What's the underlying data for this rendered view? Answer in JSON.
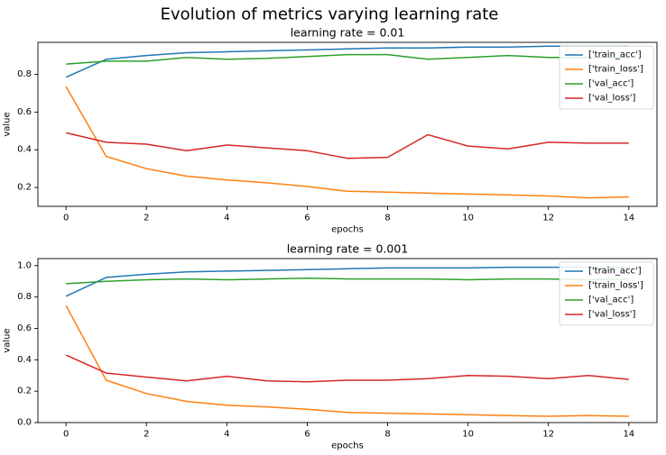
{
  "figure": {
    "suptitle": "Evolution of metrics varying learning rate"
  },
  "chart_data": [
    {
      "type": "line",
      "title": "learning rate = 0.01",
      "xlabel": "epochs",
      "ylabel": "value",
      "xlim": [
        -0.7,
        14.7
      ],
      "ylim": [
        0.1,
        0.97
      ],
      "xticks": [
        0,
        2,
        4,
        6,
        8,
        10,
        12,
        14
      ],
      "yticks": [
        0.2,
        0.4,
        0.6,
        0.8
      ],
      "legend_position": "top-right",
      "grid": false,
      "x": [
        0,
        1,
        2,
        3,
        4,
        5,
        6,
        7,
        8,
        9,
        10,
        11,
        12,
        13,
        14
      ],
      "series": [
        {
          "name": "['train_acc']",
          "color": "#1f77b4",
          "values": [
            0.785,
            0.88,
            0.9,
            0.915,
            0.92,
            0.925,
            0.93,
            0.935,
            0.94,
            0.94,
            0.945,
            0.945,
            0.95,
            0.95,
            0.95
          ]
        },
        {
          "name": "['train_loss']",
          "color": "#ff7f0e",
          "values": [
            0.735,
            0.365,
            0.3,
            0.26,
            0.24,
            0.225,
            0.205,
            0.18,
            0.175,
            0.17,
            0.165,
            0.16,
            0.155,
            0.145,
            0.15
          ]
        },
        {
          "name": "['val_acc']",
          "color": "#2ca02c",
          "values": [
            0.855,
            0.87,
            0.87,
            0.89,
            0.88,
            0.885,
            0.895,
            0.905,
            0.905,
            0.88,
            0.89,
            0.9,
            0.89,
            0.89,
            0.89
          ]
        },
        {
          "name": "['val_loss']",
          "color": "#d62728",
          "values": [
            0.49,
            0.44,
            0.43,
            0.395,
            0.425,
            0.41,
            0.395,
            0.355,
            0.36,
            0.48,
            0.42,
            0.405,
            0.44,
            0.435,
            0.435
          ]
        }
      ]
    },
    {
      "type": "line",
      "title": "learning rate = 0.001",
      "xlabel": "epochs",
      "ylabel": "value",
      "xlim": [
        -0.7,
        14.7
      ],
      "ylim": [
        0,
        1.045
      ],
      "xticks": [
        0,
        2,
        4,
        6,
        8,
        10,
        12,
        14
      ],
      "yticks": [
        0.0,
        0.2,
        0.4,
        0.6,
        0.8,
        1.0
      ],
      "legend_position": "top-right",
      "grid": false,
      "x": [
        0,
        1,
        2,
        3,
        4,
        5,
        6,
        7,
        8,
        9,
        10,
        11,
        12,
        13,
        14
      ],
      "series": [
        {
          "name": "['train_acc']",
          "color": "#1f77b4",
          "values": [
            0.805,
            0.925,
            0.945,
            0.96,
            0.965,
            0.97,
            0.975,
            0.98,
            0.985,
            0.985,
            0.985,
            0.99,
            0.99,
            0.99,
            0.99
          ]
        },
        {
          "name": "['train_loss']",
          "color": "#ff7f0e",
          "values": [
            0.745,
            0.27,
            0.185,
            0.135,
            0.11,
            0.1,
            0.085,
            0.065,
            0.06,
            0.055,
            0.05,
            0.045,
            0.04,
            0.045,
            0.04
          ]
        },
        {
          "name": "['val_acc']",
          "color": "#2ca02c",
          "values": [
            0.885,
            0.9,
            0.91,
            0.915,
            0.91,
            0.915,
            0.92,
            0.915,
            0.915,
            0.915,
            0.91,
            0.915,
            0.915,
            0.91,
            0.915
          ]
        },
        {
          "name": "['val_loss']",
          "color": "#d62728",
          "values": [
            0.43,
            0.315,
            0.29,
            0.265,
            0.295,
            0.265,
            0.26,
            0.27,
            0.27,
            0.28,
            0.3,
            0.295,
            0.28,
            0.3,
            0.275
          ]
        }
      ]
    }
  ]
}
